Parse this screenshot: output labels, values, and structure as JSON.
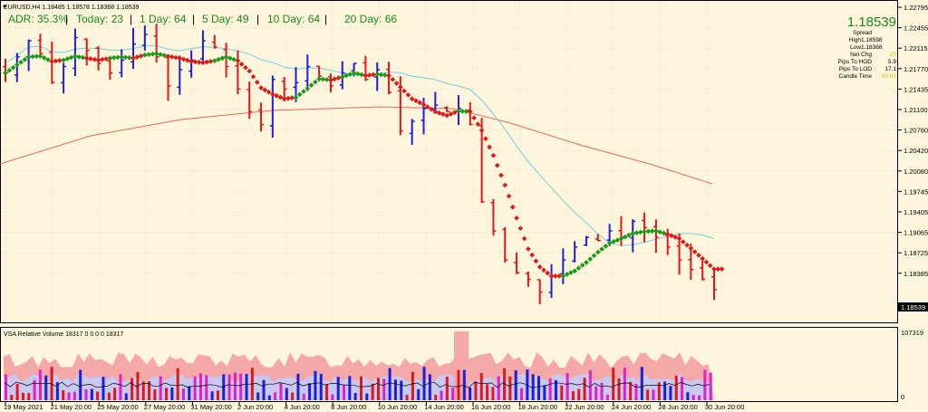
{
  "header": {
    "symbol_line": "EURUSD,H4  1.18485 1.18578 1.18368 1.18539"
  },
  "adr_bar": {
    "adr_label": "ADR: 35.3%",
    "today_label": "Today: 23",
    "day1_label": "1 Day: 64",
    "day5_label": "5 Day: 49",
    "day10_label": "10 Day: 64",
    "day20_label": "20 Day: 66",
    "separator": "|"
  },
  "info_panel": {
    "price": "1.18539",
    "spread_label": "Spread",
    "high_label": "High",
    "high_value": "1.18598",
    "low_label": "Low",
    "low_value": "1.18368",
    "net_chg_label": "Net Chg",
    "net_chg_value": "20",
    "pips_hod_label": "Pips To HOD",
    "pips_hod_value": "5.9",
    "pips_lod_label": "Pips To LOD",
    "pips_lod_value": "17.1",
    "candle_time_label": "Candle Time",
    "candle_time_value": "00:00"
  },
  "price_axis": {
    "ticks": [
      "1.22795",
      "1.22455",
      "1.22115",
      "1.21770",
      "1.21435",
      "1.21100",
      "1.20760",
      "1.20420",
      "1.20080",
      "1.19745",
      "1.19405",
      "1.19065",
      "1.18725",
      "1.18539",
      "1.18385"
    ],
    "current": "1.18539"
  },
  "volume_panel": {
    "label": "VSA Relative Volume 18317 0 0 0 0 18317",
    "max_label": "107319",
    "zero_label": "0"
  },
  "time_axis": {
    "labels": [
      "19 May 2021",
      "21 May 20:00",
      "25 May 20:00",
      "27 May 20:00",
      "31 May 20:00",
      "2 Jun 20:00",
      "4 Jun 20:00",
      "8 Jun 20:00",
      "10 Jun 20:00",
      "14 Jun 20:00",
      "16 Jun 20:00",
      "18 Jun 20:00",
      "22 Jun 20:00",
      "24 Jun 20:00",
      "28 Jun 20:00",
      "30 Jun 20:00"
    ]
  },
  "colors": {
    "background": "#fdf6dc",
    "up_bar": "#1f1fd8",
    "down_bar": "#e01818",
    "ma_up": "#1a9a1a",
    "ma_down": "#e01818",
    "ma_fast": "#6fd0e8",
    "ma_slow": "#e8685a",
    "adr_value": "#1a8a1a"
  },
  "chart_data": {
    "type": "ohlc",
    "symbol": "EURUSD",
    "timeframe": "H4",
    "price_range": [
      1.182,
      1.2292
    ],
    "approx_closes": [
      1.219,
      1.2215,
      1.224,
      1.222,
      1.2175,
      1.22,
      1.2245,
      1.2225,
      1.2205,
      1.219,
      1.221,
      1.2235,
      1.225,
      1.2215,
      1.217,
      1.2195,
      1.221,
      1.224,
      1.223,
      1.22,
      1.2165,
      1.213,
      1.211,
      1.218,
      1.2165,
      1.2175,
      1.22,
      1.2185,
      1.217,
      1.219,
      1.2205,
      1.218,
      1.2195,
      1.216,
      1.21,
      1.2115,
      1.2135,
      1.214,
      1.213,
      1.2135,
      1.211,
      1.199,
      1.1945,
      1.19,
      1.188,
      1.187,
      1.185,
      1.1875,
      1.19,
      1.192,
      1.1935,
      1.193,
      1.1945,
      1.1935,
      1.196,
      1.195,
      1.1935,
      1.192,
      1.19,
      1.1885,
      1.187,
      1.1854
    ]
  }
}
